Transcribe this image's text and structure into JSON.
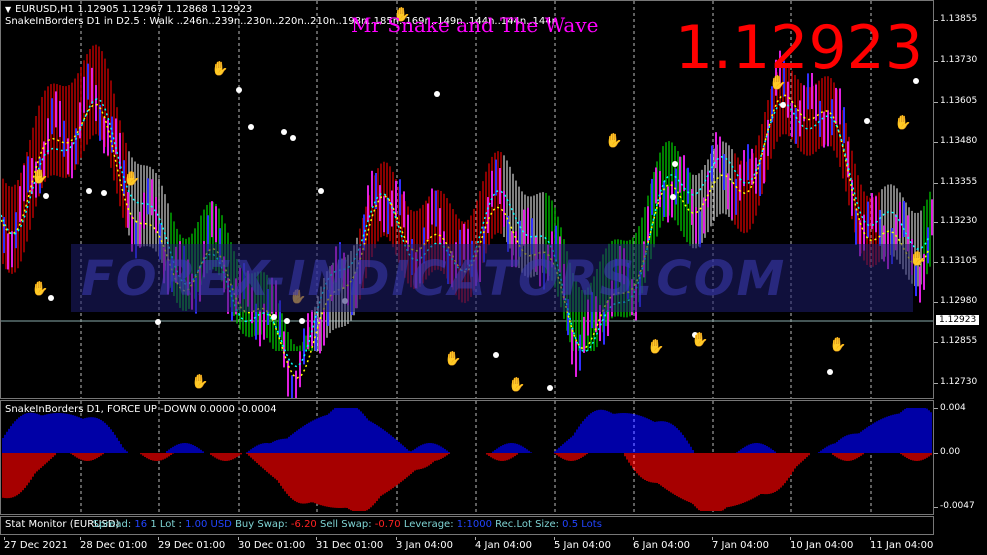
{
  "header": {
    "symbol_line": "EURUSD,H1  1.12905 1.12967 1.12868 1.12923",
    "indicator_line": "SnakeInBorders D1 in D2.5 :  Walk ..246n..239n..230n..220n..210n..198n..185n..169n..149n..144n..144n..144n",
    "title": "Mr Snake and The Wave",
    "big_price": "1.12923"
  },
  "watermark": "FOREX-INDICATORS.COM",
  "price_axis": {
    "labels": [
      "1.13855",
      "1.13730",
      "1.13605",
      "1.13480",
      "1.13355",
      "1.13230",
      "1.13105",
      "1.12980",
      "1.12855",
      "1.12730"
    ],
    "last_price": "1.12923"
  },
  "oscillator": {
    "header": "SnakeInBorders D1, FORCE UP -DOWN  0.0000 -0.0004",
    "axis_labels": [
      "0.004",
      "0.00",
      "-0.0047"
    ]
  },
  "stat_monitor": {
    "title": "Stat Monitor (EURUSD)",
    "spread_label": "Spread:",
    "spread_value": "16",
    "lot_label": "1 Lot :",
    "lot_value": "1.00 USD",
    "buy_swap_label": "Buy Swap:",
    "buy_swap_value": "-6.20",
    "sell_swap_label": "Sell Swap:",
    "sell_swap_value": "-0.70",
    "leverage_label": "Leverage:",
    "leverage_value": "1:1000",
    "rec_lot_label": "Rec.Lot Size:",
    "rec_lot_value": "0.5 Lots"
  },
  "time_axis": [
    "27 Dec 2021",
    "28 Dec 01:00",
    "29 Dec 01:00",
    "30 Dec 01:00",
    "31 Dec 01:00",
    "3 Jan 04:00",
    "4 Jan 04:00",
    "5 Jan 04:00",
    "6 Jan 04:00",
    "7 Jan 04:00",
    "10 Jan 04:00",
    "11 Jan 04:00"
  ],
  "colors": {
    "background": "#000000",
    "bull_band": "#00cc00",
    "bear_band": "#dd0000",
    "neutral_band": "#c8c8c8",
    "snake_line": "#ffff00",
    "fast_line": "#00ffff",
    "force_up": "#0000ff",
    "force_down": "#ff0000",
    "title": "#ff00ff",
    "big_price": "#ff0000"
  }
}
